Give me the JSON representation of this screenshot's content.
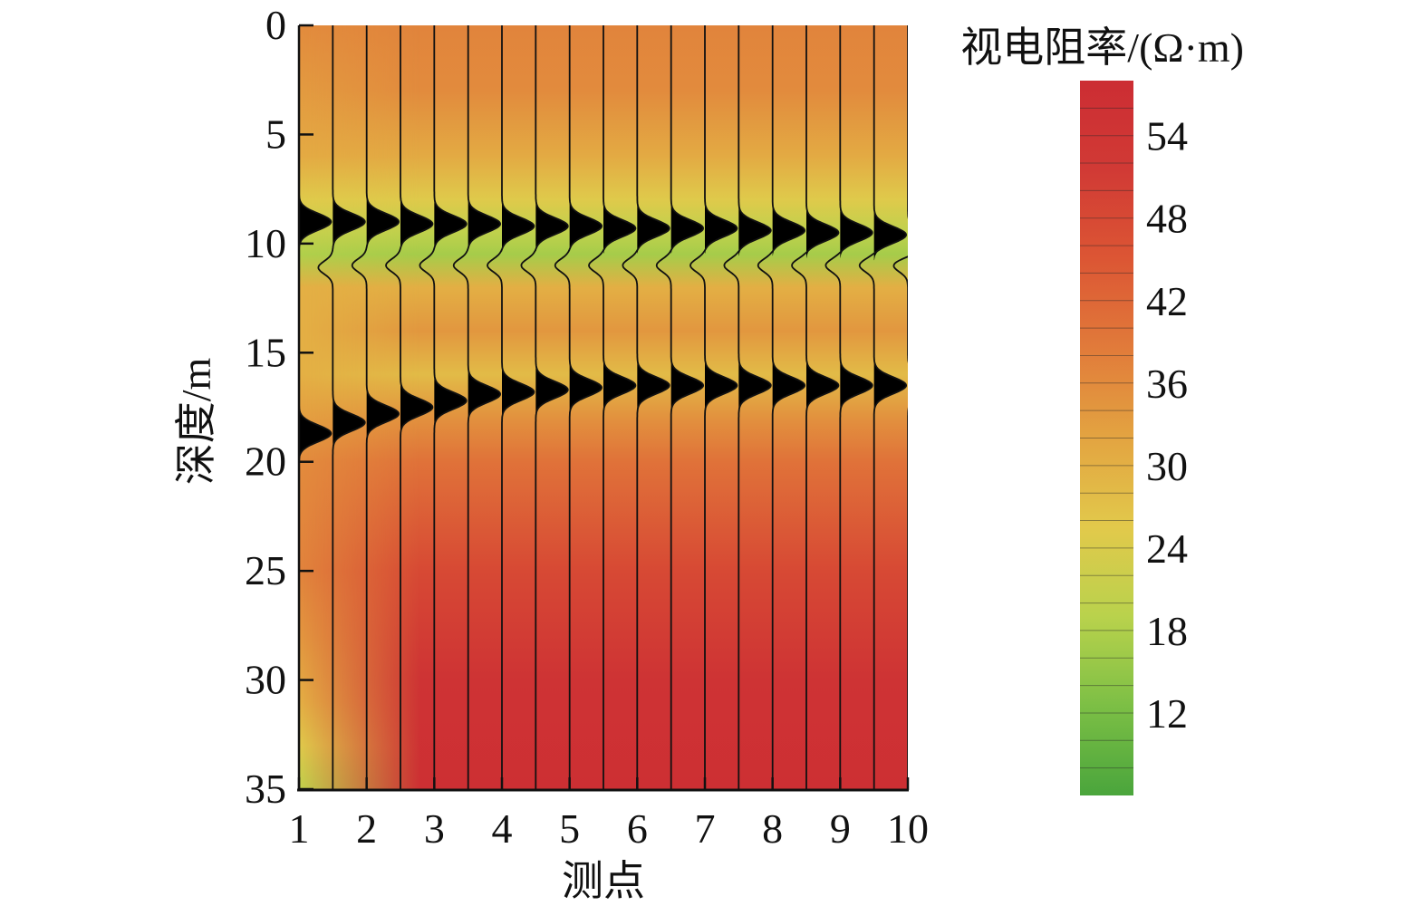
{
  "chart_data": {
    "type": "heatmap",
    "title": "",
    "xlabel": "测点",
    "ylabel": "深度/m",
    "colorbar_label": "视电阻率/(Ω·m)",
    "x_ticks": [
      1,
      2,
      3,
      4,
      5,
      6,
      7,
      8,
      9,
      10
    ],
    "xlim": [
      1,
      10
    ],
    "y_ticks": [
      0,
      5,
      10,
      15,
      20,
      25,
      30,
      35
    ],
    "ylim": [
      0,
      35
    ],
    "y_inverted": true,
    "colorbar_ticks": [
      12,
      18,
      24,
      30,
      36,
      42,
      48,
      54
    ],
    "colorbar_range": [
      6,
      58
    ],
    "colormap": [
      "#4aa53c",
      "#7cbf45",
      "#b9d24c",
      "#e2c94b",
      "#e3a441",
      "#e17b3a",
      "#dc5634",
      "#d13a35",
      "#cc2d33"
    ],
    "depth_profile": {
      "depths": [
        0,
        3,
        6,
        8,
        9.5,
        10.5,
        12,
        14,
        16,
        18,
        20,
        25,
        30,
        35
      ],
      "resistivity": [
        37,
        36,
        31,
        25,
        20,
        17,
        30,
        34,
        28,
        35,
        40,
        48,
        55,
        57
      ]
    },
    "left_edge_profile": {
      "depths": [
        0,
        6,
        8,
        9.5,
        10.5,
        12,
        16,
        18,
        20,
        25,
        28,
        31,
        33,
        35
      ],
      "resistivity": [
        36,
        31,
        25,
        21,
        18,
        30,
        30,
        33,
        36,
        37,
        34,
        30,
        25,
        20
      ]
    },
    "trace_positions": [
      1,
      1.5,
      2,
      2.5,
      3,
      3.5,
      4,
      4.5,
      5,
      5.5,
      6,
      6.5,
      7,
      7.5,
      8,
      8.5,
      9,
      9.5,
      10
    ],
    "upper_reflector_depths": [
      9,
      9,
      9,
      9.1,
      9.1,
      9.1,
      9.2,
      9.2,
      9.2,
      9.3,
      9.3,
      9.3,
      9.3,
      9.4,
      9.4,
      9.5,
      9.5,
      9.6,
      9.9
    ],
    "lower_reflector_depths": [
      18.7,
      18.2,
      17.8,
      17.5,
      17.2,
      16.9,
      16.8,
      16.7,
      16.6,
      16.5,
      16.5,
      16.5,
      16.5,
      16.5,
      16.5,
      16.5,
      16.5,
      16.5,
      16.5
    ],
    "trough_depths": [
      11.1,
      11.1,
      11,
      11,
      11,
      11,
      11,
      11,
      11,
      11,
      11,
      11,
      11,
      11,
      11,
      11,
      11,
      11,
      11
    ]
  }
}
